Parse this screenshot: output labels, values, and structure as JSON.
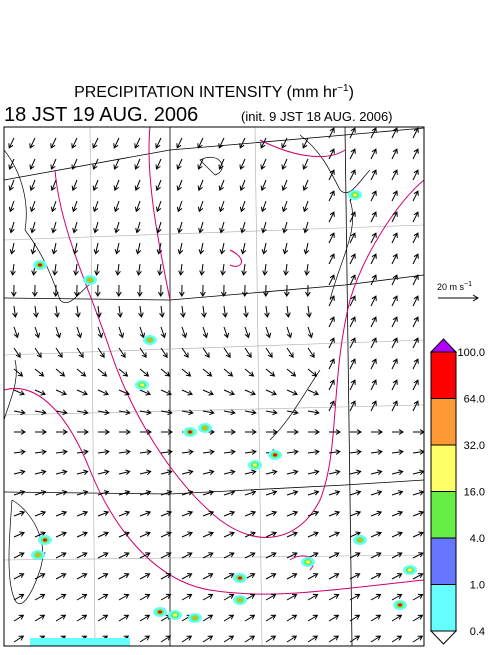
{
  "header": {
    "title": "PRECIPITATION INTENSITY (mm hr",
    "title_sup": "−1",
    "title_end": ")",
    "time": "18 JST 19 AUG. 2006",
    "init": "(init. 9 JST 18 AUG. 2006)"
  },
  "reference_vector": {
    "label": "20 m s",
    "label_sup": "−1"
  },
  "colorbar": {
    "labels": [
      "100.0",
      "64.0",
      "32.0",
      "16.0",
      "4.0",
      "1.0",
      "0.4"
    ],
    "colors": [
      "#b000ff",
      "#ff0000",
      "#ff9933",
      "#ffff66",
      "#66ee44",
      "#6677ff",
      "#66ffff",
      "#ffffff"
    ]
  }
}
